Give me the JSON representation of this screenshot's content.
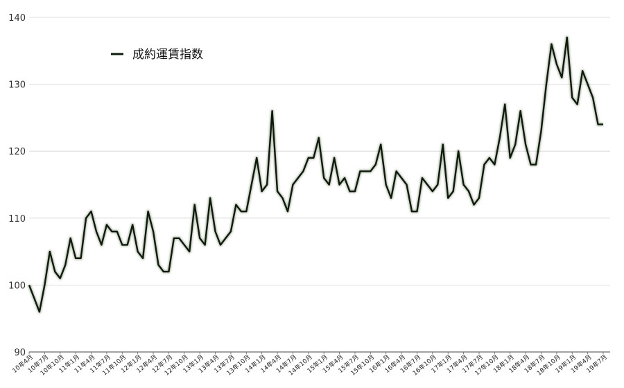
{
  "chart_data": {
    "type": "line",
    "grid": true,
    "legend_position": "top-left",
    "ylim": [
      90,
      140
    ],
    "yticks": [
      90,
      100,
      110,
      120,
      130,
      140
    ],
    "xtick_labels": [
      "10年4月",
      "10年7月",
      "10年10月",
      "11年1月",
      "11年4月",
      "11年7月",
      "11年10月",
      "12年1月",
      "12年4月",
      "12年7月",
      "12年10月",
      "13年1月",
      "13年4月",
      "13年7月",
      "13年10月",
      "14年1月",
      "14年4月",
      "14年7月",
      "14年10月",
      "15年1月",
      "15年4月",
      "15年7月",
      "15年10月",
      "16年1月",
      "16年4月",
      "16年7月",
      "16年10月",
      "17年1月",
      "17年4月",
      "17年7月",
      "17年10月",
      "18年1月",
      "18年4月",
      "18年7月",
      "18年10月",
      "19年1月",
      "19年4月",
      "19年7月"
    ],
    "series": [
      {
        "name": "成約運賃指数",
        "color": "#0f1a0f",
        "values": [
          100,
          98,
          96,
          100,
          105,
          102,
          101,
          103,
          107,
          104,
          104,
          110,
          111,
          108,
          106,
          109,
          108,
          108,
          106,
          106,
          109,
          105,
          104,
          111,
          108,
          103,
          102,
          102,
          107,
          107,
          106,
          105,
          112,
          107,
          106,
          113,
          108,
          106,
          107,
          108,
          112,
          111,
          111,
          115,
          119,
          114,
          115,
          126,
          114,
          113,
          111,
          115,
          116,
          117,
          119,
          119,
          122,
          116,
          115,
          119,
          115,
          116,
          114,
          114,
          117,
          117,
          117,
          118,
          121,
          115,
          113,
          117,
          116,
          115,
          111,
          111,
          116,
          115,
          114,
          115,
          121,
          113,
          114,
          120,
          115,
          114,
          112,
          113,
          118,
          119,
          118,
          122,
          127,
          119,
          121,
          126,
          121,
          118,
          118,
          123,
          130,
          136,
          133,
          131,
          137,
          128,
          127,
          132,
          130,
          128,
          124,
          124
        ]
      }
    ]
  }
}
